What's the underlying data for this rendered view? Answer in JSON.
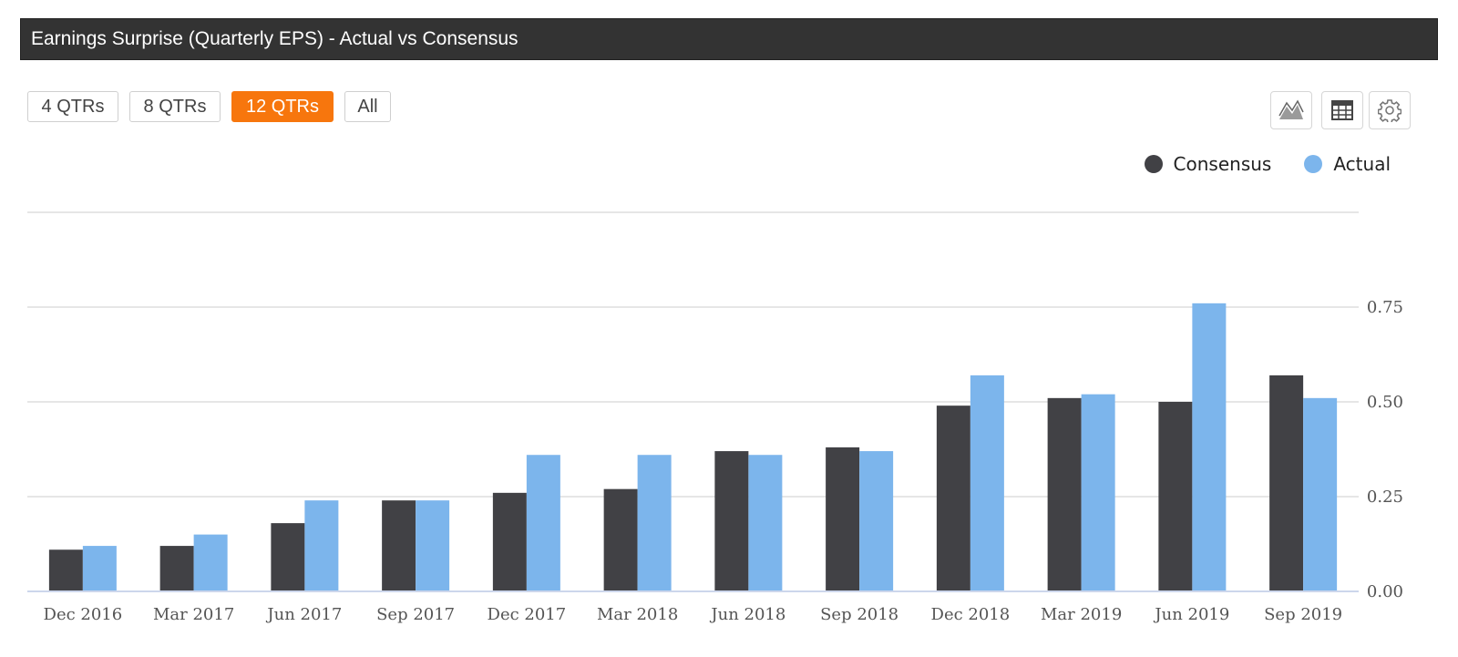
{
  "header": {
    "title": "Earnings Surprise (Quarterly EPS) - Actual vs Consensus"
  },
  "range_buttons": [
    {
      "label": "4 QTRs",
      "active": false
    },
    {
      "label": "8 QTRs",
      "active": false
    },
    {
      "label": "12 QTRs",
      "active": true
    },
    {
      "label": "All",
      "active": false
    }
  ],
  "toolbar": {
    "icons": [
      "area-chart-icon",
      "table-icon",
      "gear-icon"
    ]
  },
  "colors": {
    "consensus": "#414145",
    "actual": "#7cb5ec",
    "active_button": "#f7760d",
    "title_bar": "#333333"
  },
  "legend": {
    "consensus_label": "Consensus",
    "actual_label": "Actual"
  },
  "chart_data": {
    "type": "bar",
    "categories": [
      "Dec 2016",
      "Mar 2017",
      "Jun 2017",
      "Sep 2017",
      "Dec 2017",
      "Mar 2018",
      "Jun 2018",
      "Sep 2018",
      "Dec 2018",
      "Mar 2019",
      "Jun 2019",
      "Sep 2019"
    ],
    "series": [
      {
        "name": "Consensus",
        "values": [
          0.11,
          0.12,
          0.18,
          0.24,
          0.26,
          0.27,
          0.37,
          0.38,
          0.49,
          0.51,
          0.5,
          0.57
        ]
      },
      {
        "name": "Actual",
        "values": [
          0.12,
          0.15,
          0.24,
          0.24,
          0.36,
          0.36,
          0.36,
          0.37,
          0.57,
          0.52,
          0.76,
          0.51
        ]
      }
    ],
    "yticks": [
      "0.00",
      "0.25",
      "0.50",
      "0.75"
    ],
    "ylim": [
      0,
      1
    ],
    "legend_position": "top-right",
    "grid": true
  }
}
